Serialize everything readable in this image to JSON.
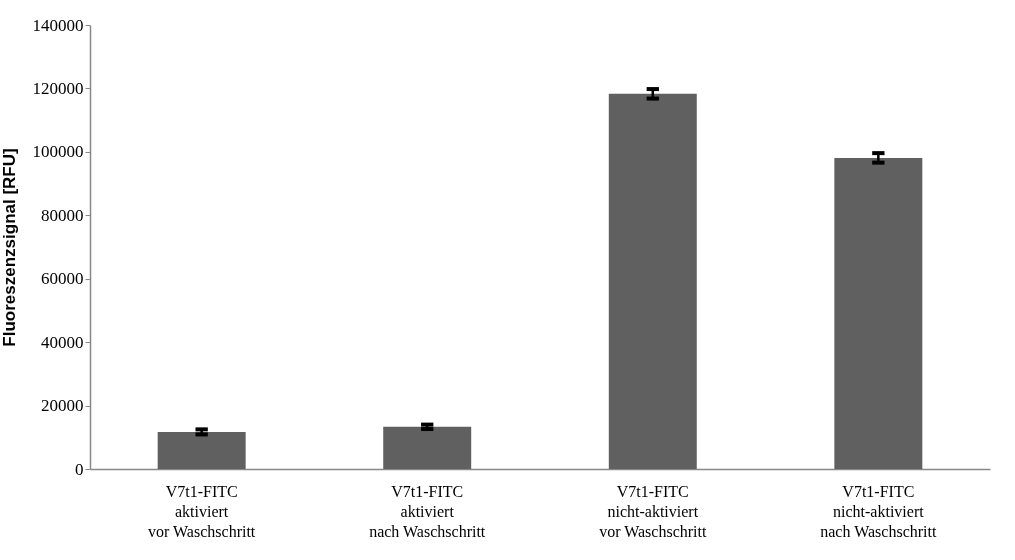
{
  "chart_data": {
    "type": "bar",
    "ylabel": "Fluoreszenzsignal [RFU]",
    "categories": [
      "V7t1-FITC\naktiviert\nvor Waschschritt",
      "V7t1-FITC\naktiviert\nnach Waschschritt",
      "V7t1-FITC\nnicht-aktiviert\nvor Waschschritt",
      "V7t1-FITC\nnicht-aktiviert\nnach Waschschritt"
    ],
    "values": [
      11700,
      13300,
      118300,
      98100
    ],
    "errors": [
      800,
      700,
      1500,
      1500
    ],
    "color": "#606060",
    "ylim": [
      0,
      140000
    ],
    "yticks": [
      0,
      20000,
      40000,
      60000,
      80000,
      100000,
      120000,
      140000
    ],
    "grid": false
  }
}
